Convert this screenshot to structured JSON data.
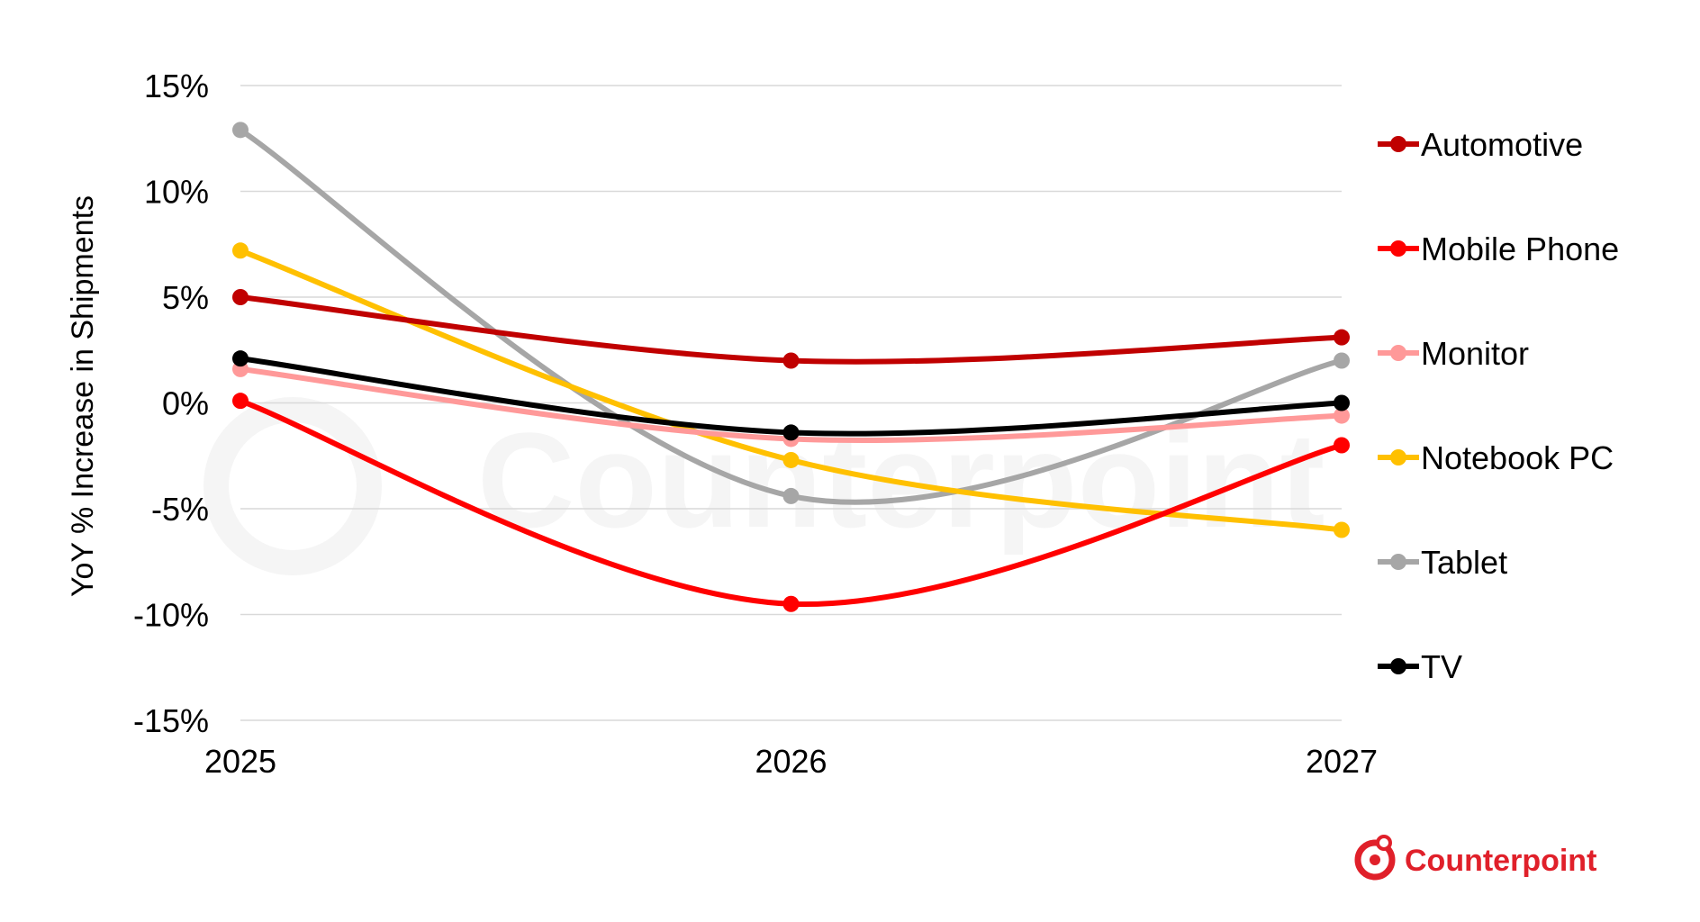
{
  "chart_data": {
    "type": "line",
    "title": "",
    "xlabel": "",
    "ylabel": "YoY % Increase in Shipments",
    "x": [
      "2025",
      "2026",
      "2027"
    ],
    "ylim": [
      -15,
      15
    ],
    "yticks": [
      15,
      10,
      5,
      0,
      -5,
      -10,
      -15
    ],
    "ytick_labels": [
      "15%",
      "10%",
      "5%",
      "0%",
      "-5%",
      "-10%",
      "-15%"
    ],
    "grid": true,
    "legend_position": "right",
    "smooth": true,
    "series": [
      {
        "name": "Automotive",
        "color": "#c00000",
        "values": [
          5.0,
          2.0,
          3.1
        ]
      },
      {
        "name": "Mobile Phone",
        "color": "#ff0000",
        "values": [
          0.1,
          -9.5,
          -2.0
        ]
      },
      {
        "name": "Monitor",
        "color": "#ff9999",
        "values": [
          1.6,
          -1.7,
          -0.6
        ]
      },
      {
        "name": "Notebook PC",
        "color": "#ffc000",
        "values": [
          7.2,
          -2.7,
          -6.0
        ]
      },
      {
        "name": "Tablet",
        "color": "#a6a6a6",
        "values": [
          12.9,
          -4.4,
          2.0
        ]
      },
      {
        "name": "TV",
        "color": "#000000",
        "values": [
          2.1,
          -1.4,
          0.0
        ]
      }
    ]
  },
  "branding": {
    "logo_text": "Counterpoint",
    "logo_color": "#e0202a",
    "logo_icon": "counterpoint-logo-icon",
    "watermark_text": "Counterpoint"
  }
}
